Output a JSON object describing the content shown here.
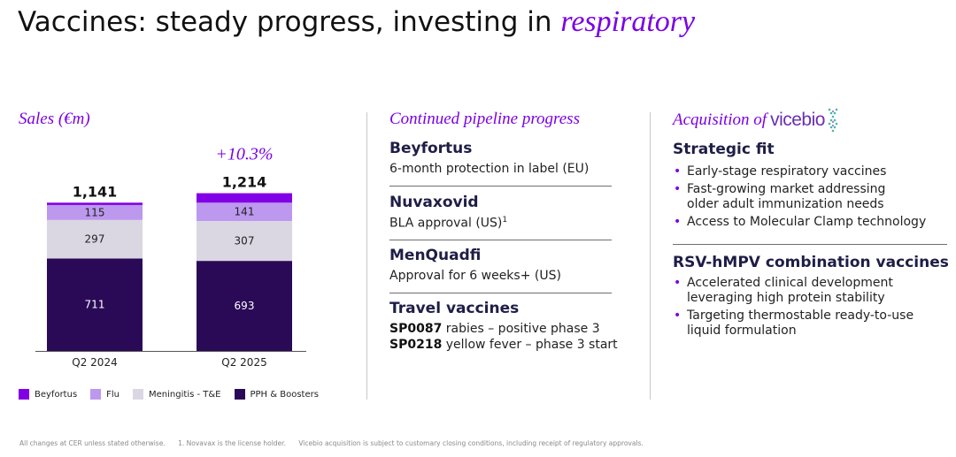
{
  "title": {
    "main": "Vaccines: steady progress, investing in ",
    "accent": "respiratory"
  },
  "sales": {
    "title": "Sales (€m)"
  },
  "chart_data": {
    "type": "bar",
    "stacked": true,
    "categories": [
      "Q2 2024",
      "Q2 2025"
    ],
    "series": [
      {
        "name": "PPH & Boosters",
        "values": [
          711,
          693
        ],
        "color": "#2a0a57"
      },
      {
        "name": "Meningitis - T&E",
        "values": [
          297,
          307
        ],
        "color": "#dad7e2"
      },
      {
        "name": "Flu",
        "values": [
          115,
          141
        ],
        "color": "#bc98ee"
      },
      {
        "name": "Beyfortus",
        "values": [
          18,
          73
        ],
        "color": "#8200e6"
      }
    ],
    "totals": [
      "1,141",
      "1,214"
    ],
    "change_label": "+10.3%",
    "segment_labels": [
      [
        "711",
        "297",
        "115"
      ],
      [
        "693",
        "307",
        "141"
      ]
    ],
    "legend_order": [
      "Beyfortus",
      "Flu",
      "Meningitis - T&E",
      "PPH & Boosters"
    ],
    "legend_placement": "bottom"
  },
  "pipeline": {
    "title": "Continued pipeline progress",
    "items": [
      {
        "name": "Beyfortus",
        "desc": "6-month protection in label (EU)"
      },
      {
        "name": "Nuvaxovid",
        "desc": "BLA approval (US)",
        "sup": "1"
      },
      {
        "name": "MenQuadfi",
        "desc": "Approval for 6 weeks+ (US)"
      }
    ],
    "travel": {
      "name": "Travel vaccines",
      "lines": [
        {
          "code": "SP0087",
          "text": " rabies – positive phase 3"
        },
        {
          "code": "SP0218",
          "text": " yellow fever – phase 3 start"
        }
      ]
    }
  },
  "acquisition": {
    "title": "Acquisition of ",
    "logo_text": "vicebio",
    "strategic": {
      "heading": "Strategic fit",
      "bullets": [
        "Early-stage respiratory vaccines",
        "Fast-growing market addressing older adult immunization needs",
        "Access to Molecular Clamp technology"
      ]
    },
    "rsv": {
      "heading": "RSV-hMPV combination vaccines",
      "bullets": [
        "Accelerated clinical development leveraging high protein stability",
        "Targeting thermostable ready-to-use liquid formulation"
      ]
    }
  },
  "footer": {
    "note1": "All changes at CER unless stated otherwise.",
    "note2": "1. Novavax is the license holder.",
    "note3": "Vicebio acquisition is subject to customary closing conditions, including receipt of regulatory approvals."
  },
  "colors": {
    "accent": "#7a00e6",
    "heading": "#1e1e46"
  }
}
